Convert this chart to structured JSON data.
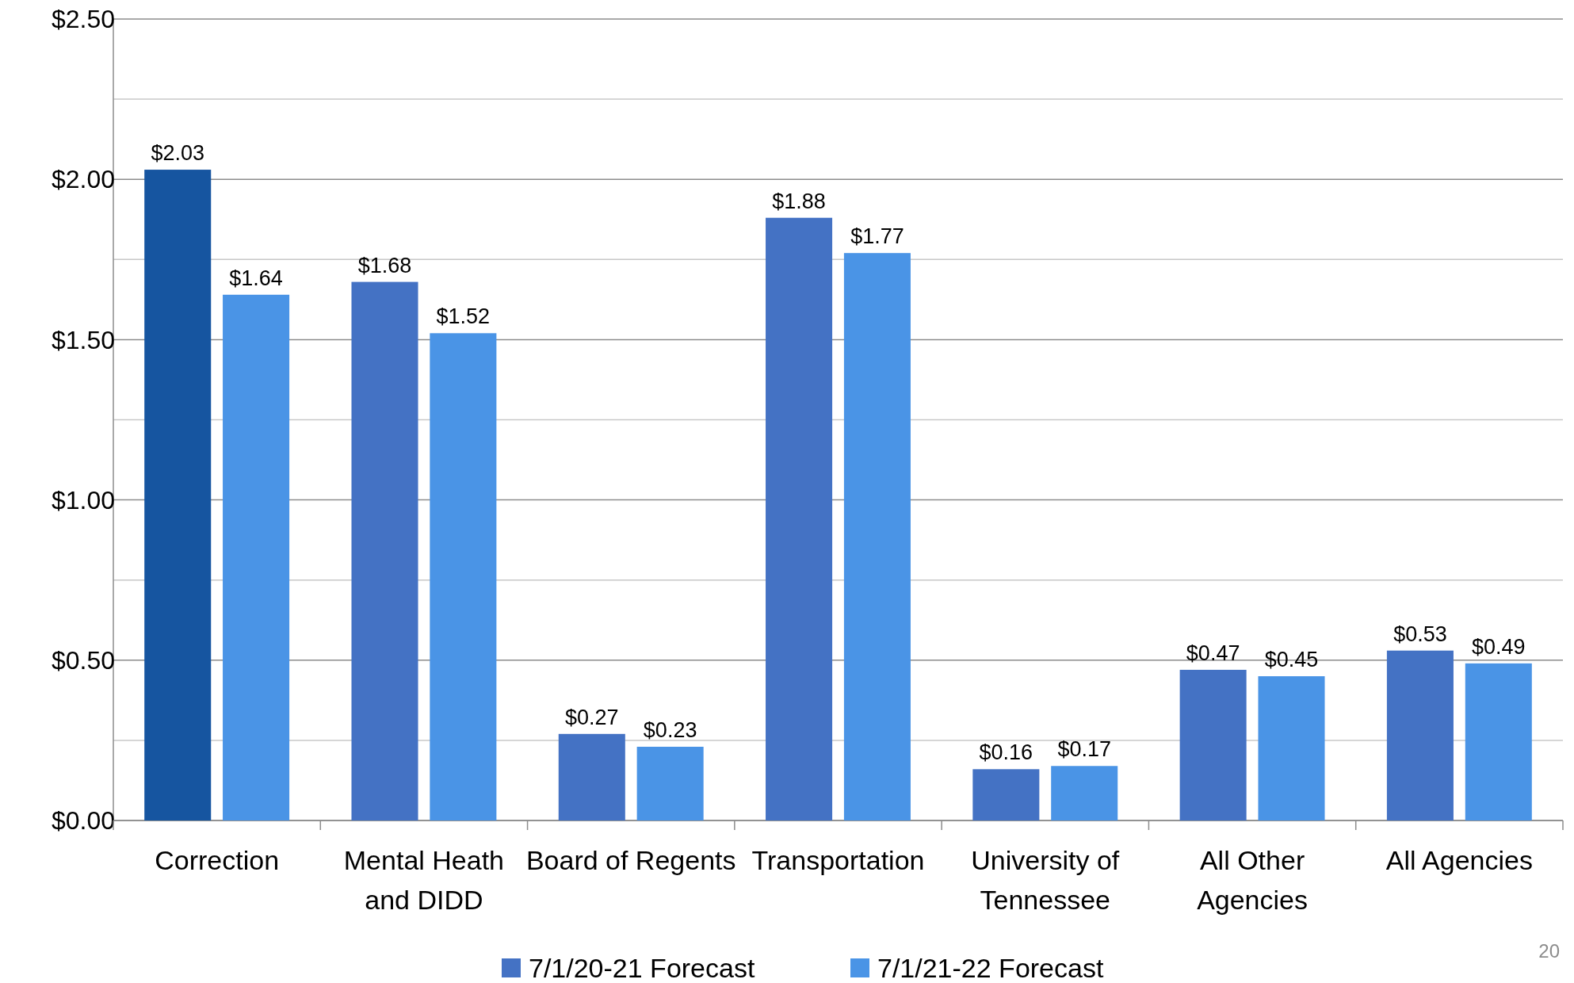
{
  "chart_data": {
    "type": "bar",
    "categories": [
      "Correction",
      "Mental Heath and DIDD",
      "Board of Regents",
      "Transportation",
      "University of Tennessee",
      "All Other Agencies",
      "All Agencies"
    ],
    "series": [
      {
        "name": "7/1/20-21 Forecast",
        "color": "#4472c4",
        "colors": [
          "#1655a0",
          "#4472c4",
          "#4472c4",
          "#4472c4",
          "#4472c4",
          "#4472c4",
          "#4472c4"
        ],
        "values": [
          2.03,
          1.68,
          0.27,
          1.88,
          0.16,
          0.47,
          0.53
        ],
        "value_labels": [
          "$2.03",
          "$1.68",
          "$0.27",
          "$1.88",
          "$0.16",
          "$0.47",
          "$0.53"
        ]
      },
      {
        "name": "7/1/21-22 Forecast",
        "color": "#4a94e6",
        "values": [
          1.64,
          1.52,
          0.23,
          1.77,
          0.17,
          0.45,
          0.49
        ],
        "value_labels": [
          "$1.64",
          "$1.52",
          "$0.23",
          "$1.77",
          "$0.17",
          "$0.45",
          "$0.49"
        ]
      }
    ],
    "ylim": [
      0,
      2.5
    ],
    "yticks": [
      {
        "value": 0,
        "label": "$0.00"
      },
      {
        "value": 0.25,
        "label": null
      },
      {
        "value": 0.5,
        "label": "$0.50"
      },
      {
        "value": 0.75,
        "label": null
      },
      {
        "value": 1,
        "label": "$1.00"
      },
      {
        "value": 1.25,
        "label": null
      },
      {
        "value": 1.5,
        "label": "$1.50"
      },
      {
        "value": 1.75,
        "label": null
      },
      {
        "value": 2,
        "label": "$2.00"
      },
      {
        "value": 2.25,
        "label": null
      },
      {
        "value": 2.5,
        "label": "$2.50"
      }
    ],
    "grid": "y",
    "legend": "bottom",
    "annotations": [
      "20"
    ]
  }
}
